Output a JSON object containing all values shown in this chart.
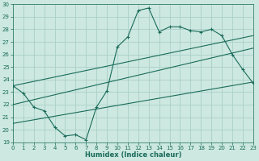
{
  "xlabel": "Humidex (Indice chaleur)",
  "bg_color": "#cce8e0",
  "grid_color": "#aacfc8",
  "line_color": "#1a6b5a",
  "x_min": 0,
  "x_max": 23,
  "y_min": 19,
  "y_max": 30,
  "line1_x": [
    0,
    1,
    2,
    3,
    4,
    5,
    6,
    7,
    8,
    9,
    10,
    11,
    12,
    13,
    14,
    15,
    16,
    17,
    18,
    19,
    20,
    21,
    22,
    23
  ],
  "line1_y": [
    23.5,
    22.9,
    21.8,
    21.5,
    20.2,
    19.5,
    19.6,
    19.2,
    21.8,
    23.1,
    26.6,
    27.4,
    29.5,
    29.7,
    27.8,
    28.2,
    28.2,
    27.9,
    27.8,
    28.0,
    27.5,
    26.0,
    24.8,
    23.7
  ],
  "line2_x": [
    0,
    23
  ],
  "line2_y": [
    23.5,
    27.5
  ],
  "line3_x": [
    0,
    23
  ],
  "line3_y": [
    22.0,
    26.5
  ],
  "line4_x": [
    0,
    23
  ],
  "line4_y": [
    20.5,
    23.8
  ]
}
